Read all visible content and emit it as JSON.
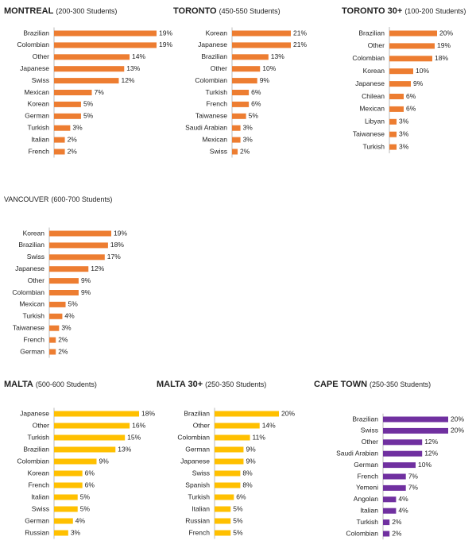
{
  "chart_data": [
    {
      "type": "bar",
      "orientation": "horizontal",
      "title": "MONTREAL",
      "subtitle": "(200-300 Students)",
      "color": "#ed7d31",
      "categories": [
        "Brazilian",
        "Colombian",
        "Other",
        "Japanese",
        "Swiss",
        "Mexican",
        "Korean",
        "German",
        "Turkish",
        "Italian",
        "French"
      ],
      "values": [
        19,
        19,
        14,
        13,
        12,
        7,
        5,
        5,
        3,
        2,
        2
      ],
      "value_labels": [
        "19%",
        "19%",
        "14%",
        "13%",
        "12%",
        "7%",
        "5%",
        "5%",
        "3%",
        "2%",
        "2%"
      ]
    },
    {
      "type": "bar",
      "orientation": "horizontal",
      "title": "TORONTO",
      "subtitle": "(450-550 Students)",
      "color": "#ed7d31",
      "categories": [
        "Korean",
        "Japanese",
        "Brazilian",
        "Other",
        "Colombian",
        "Turkish",
        "French",
        "Taiwanese",
        "Saudi Arabian",
        "Mexican",
        "Swiss"
      ],
      "values": [
        21,
        21,
        13,
        10,
        9,
        6,
        6,
        5,
        3,
        3,
        2
      ],
      "value_labels": [
        "21%",
        "21%",
        "13%",
        "10%",
        "9%",
        "6%",
        "6%",
        "5%",
        "3%",
        "3%",
        "2%"
      ]
    },
    {
      "type": "bar",
      "orientation": "horizontal",
      "title": "TORONTO 30+",
      "subtitle": "(100-200 Students)",
      "color": "#ed7d31",
      "categories": [
        "Brazilian",
        "Other",
        "Colombian",
        "Korean",
        "Japanese",
        "Chilean",
        "Mexican",
        "Libyan",
        "Taiwanese",
        "Turkish"
      ],
      "values": [
        20,
        19,
        18,
        10,
        9,
        6,
        6,
        3,
        3,
        3
      ],
      "value_labels": [
        "20%",
        "19%",
        "18%",
        "10%",
        "9%",
        "6%",
        "6%",
        "3%",
        "3%",
        "3%"
      ]
    },
    {
      "type": "bar",
      "orientation": "horizontal",
      "title": "VANCOUVER",
      "subtitle": "(600-700 Students)",
      "color": "#ed7d31",
      "categories": [
        "Korean",
        "Brazilian",
        "Swiss",
        "Japanese",
        "Other",
        "Colombian",
        "Mexican",
        "Turkish",
        "Taiwanese",
        "French",
        "German"
      ],
      "values": [
        19,
        18,
        17,
        12,
        9,
        9,
        5,
        4,
        3,
        2,
        2
      ],
      "value_labels": [
        "19%",
        "18%",
        "17%",
        "12%",
        "9%",
        "9%",
        "5%",
        "4%",
        "3%",
        "2%",
        "2%"
      ]
    },
    {
      "type": "bar",
      "orientation": "horizontal",
      "title": "MALTA",
      "subtitle": "(500-600 Students)",
      "color": "#ffc000",
      "categories": [
        "Japanese",
        "Other",
        "Turkish",
        "Brazilian",
        "Colombian",
        "Korean",
        "French",
        "Italian",
        "Swiss",
        "German",
        "Russian"
      ],
      "values": [
        18,
        16,
        15,
        13,
        9,
        6,
        6,
        5,
        5,
        4,
        3
      ],
      "value_labels": [
        "18%",
        "16%",
        "15%",
        "13%",
        "9%",
        "6%",
        "6%",
        "5%",
        "5%",
        "4%",
        "3%"
      ]
    },
    {
      "type": "bar",
      "orientation": "horizontal",
      "title": "MALTA 30+",
      "subtitle": "(250-350 Students)",
      "color": "#ffc000",
      "categories": [
        "Brazilian",
        "Other",
        "Colombian",
        "German",
        "Japanese",
        "Swiss",
        "Spanish",
        "Turkish",
        "Italian",
        "Russian",
        "French"
      ],
      "values": [
        20,
        14,
        11,
        9,
        9,
        8,
        8,
        6,
        5,
        5,
        5
      ],
      "value_labels": [
        "20%",
        "14%",
        "11%",
        "9%",
        "9%",
        "8%",
        "8%",
        "6%",
        "5%",
        "5%",
        "5%"
      ]
    },
    {
      "type": "bar",
      "orientation": "horizontal",
      "title": "CAPE TOWN",
      "subtitle": "(250-350 Students)",
      "color": "#7030a0",
      "categories": [
        "Brazilian",
        "Swiss",
        "Other",
        "Saudi Arabian",
        "German",
        "French",
        "Yemeni",
        "Angolan",
        "Italian",
        "Turkish",
        "Colombian"
      ],
      "values": [
        20,
        20,
        12,
        12,
        10,
        7,
        7,
        4,
        4,
        2,
        2
      ],
      "value_labels": [
        "20%",
        "20%",
        "12%",
        "12%",
        "10%",
        "7%",
        "7%",
        "4%",
        "4%",
        "2%",
        "2%"
      ]
    }
  ]
}
